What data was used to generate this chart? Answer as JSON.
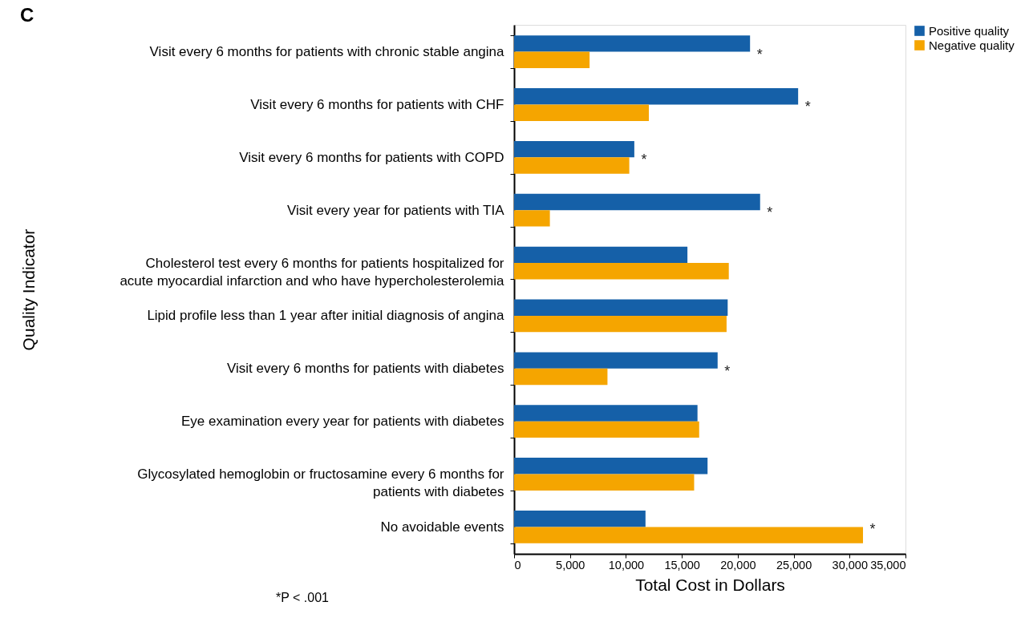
{
  "chart_data": {
    "type": "bar",
    "orientation": "horizontal",
    "title": "C",
    "xlabel": "Total Cost in Dollars",
    "ylabel": "Quality Indicator",
    "categories": [
      "Visit every 6 months for patients with chronic stable angina",
      "Visit every 6 months for patients with CHF",
      "Visit every 6 months for patients with COPD",
      "Visit every year for patients with TIA",
      "Cholesterol test every 6 months for patients hospitalized for acute myocardial infarction and who have hypercholesterolemia",
      "Lipid profile less than 1 year after initial diagnosis of angina",
      "Visit every 6 months for patients with diabetes",
      "Eye examination every year for patients with diabetes",
      "Glycosylated hemoglobin or fructosamine every 6 months for patients with diabetes",
      "No avoidable events"
    ],
    "series": [
      {
        "name": "Positive quality",
        "color": "#1560a8",
        "values": [
          21100,
          25400,
          10750,
          22000,
          15500,
          19100,
          18200,
          16400,
          17300,
          11750
        ]
      },
      {
        "name": "Negative quality",
        "color": "#f5a500",
        "values": [
          6750,
          12050,
          10300,
          3200,
          19200,
          19000,
          8350,
          16550,
          16100,
          31200
        ]
      }
    ],
    "xlim": [
      0,
      35000
    ],
    "xticks": [
      {
        "value": 0,
        "label": "0"
      },
      {
        "value": 5000,
        "label": "5,000"
      },
      {
        "value": 10000,
        "label": "10,000"
      },
      {
        "value": 15000,
        "label": "15,000"
      },
      {
        "value": 20000,
        "label": "20,000"
      },
      {
        "value": 25000,
        "label": "25,000"
      },
      {
        "value": 30000,
        "label": "30,000"
      },
      {
        "value": 35000,
        "label": "35,000"
      }
    ],
    "grid": false,
    "legend": "top right",
    "annotations": [
      {
        "text": "*",
        "x": 21100,
        "y": "Visit every 6 months for patients with chronic stable angina"
      },
      {
        "text": "*",
        "x": 25400,
        "y": "Visit every 6 months for patients with CHF"
      },
      {
        "text": "*",
        "x": 10750,
        "y": "Visit every 6 months for patients with COPD"
      },
      {
        "text": "*",
        "x": 22000,
        "y": "Visit every year for patients with TIA"
      },
      {
        "text": "*",
        "x": 18200,
        "y": "Visit every 6 months for patients with diabetes"
      },
      {
        "text": "*",
        "x": 31200,
        "y": "No avoidable events"
      },
      "*P < .001"
    ]
  }
}
